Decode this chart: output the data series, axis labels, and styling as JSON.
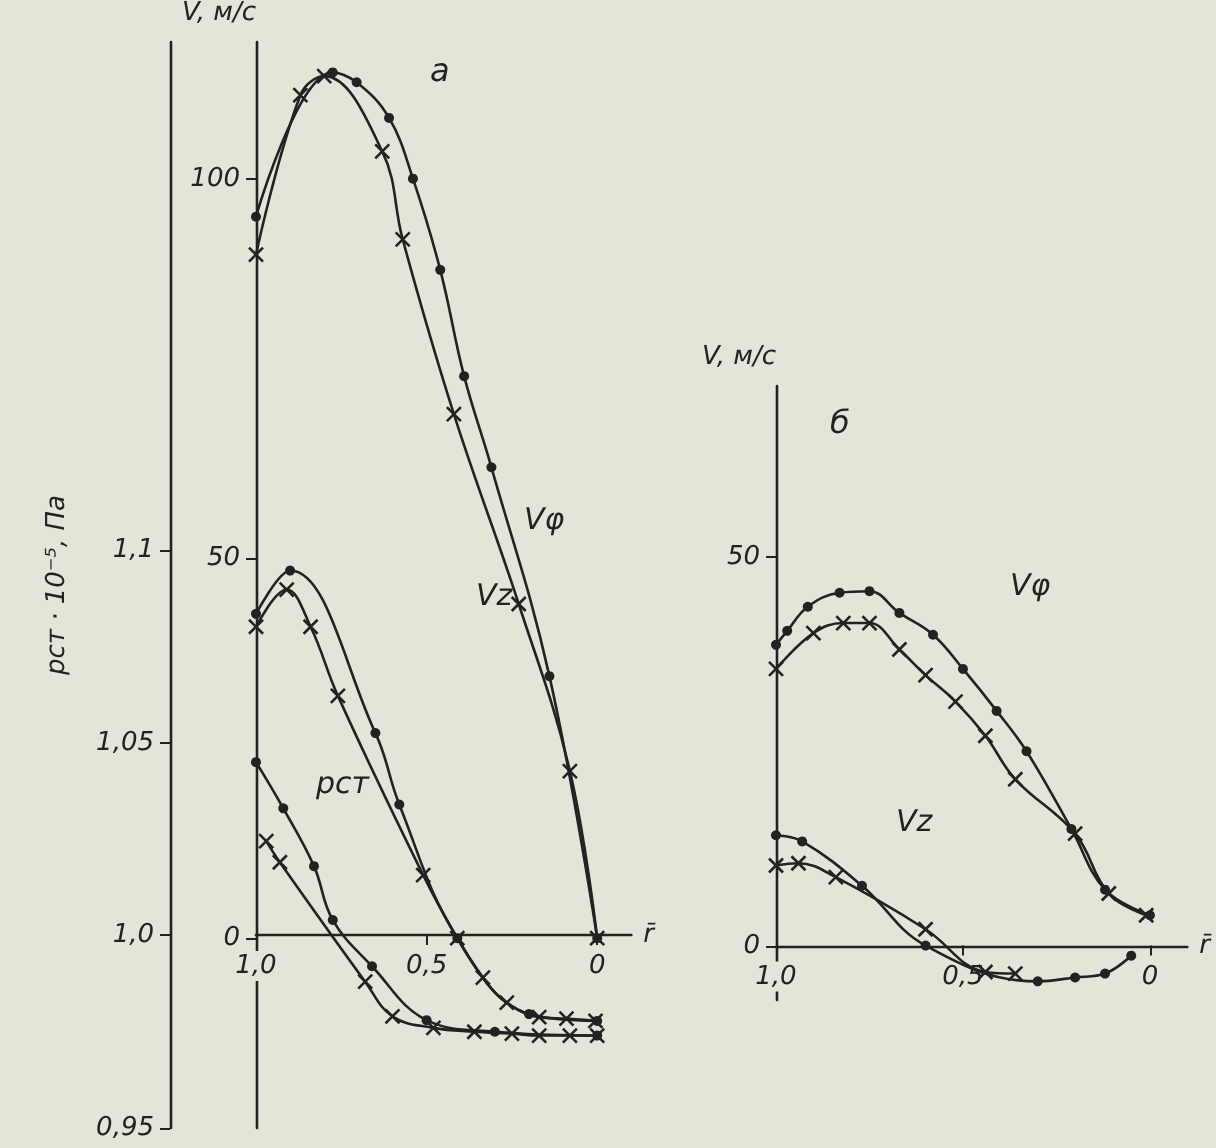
{
  "chart_data": [
    {
      "type": "line",
      "title": "а",
      "xlabel": "r̄",
      "ylabel": "V, м/с",
      "y2label": "pст · 10⁻⁵, Па",
      "xlim": [
        1,
        -0.1
      ],
      "xticks": [
        {
          "value": 1,
          "label": "1,0"
        },
        {
          "value": 0.5,
          "label": "0,5"
        },
        {
          "value": 0,
          "label": "0"
        }
      ],
      "ylim": [
        -25,
        118
      ],
      "yticks": [
        0,
        50,
        100
      ],
      "y2lim": [
        0.95,
        1.232
      ],
      "y2ticks": [
        {
          "value": 0.95,
          "label": "0,95"
        },
        {
          "value": 1,
          "label": "1,0"
        },
        {
          "value": 1.05,
          "label": "1,05"
        },
        {
          "value": 1.1,
          "label": "1,1"
        }
      ],
      "grid": false,
      "series": [
        {
          "color": "#222222",
          "marker": "circle",
          "x": [
            1,
            0.775,
            0.705,
            0.61,
            0.54,
            0.46,
            0.39,
            0.31,
            0.14,
            0
          ],
          "values": [
            95,
            114,
            112.7,
            108,
            100,
            88,
            74,
            62,
            34.5,
            0
          ]
        },
        {
          "color": "#222222",
          "marker": "cross",
          "x": [
            1,
            0.87,
            0.8,
            0.63,
            0.57,
            0.42,
            0.23,
            0.08,
            0
          ],
          "values": [
            90,
            111,
            113.5,
            103.6,
            92,
            69,
            44,
            22,
            0
          ]
        },
        {
          "color": "#222222",
          "marker": "circle",
          "x": [
            1,
            0.9,
            0.65,
            0.58,
            0.41,
            0.2,
            0
          ],
          "values": [
            42.7,
            48.4,
            27,
            17.6,
            0,
            -10,
            -10.9
          ]
        },
        {
          "color": "#222222",
          "marker": "cross",
          "x": [
            1,
            0.91,
            0.84,
            0.76,
            0.51,
            0.41,
            0.335,
            0.265,
            0.17,
            0.09,
            0.005
          ],
          "values": [
            41,
            45.9,
            41,
            31.9,
            8.3,
            0,
            -5.2,
            -8.5,
            -10.4,
            -10.6,
            -10.9
          ]
        },
        {
          "color": "#222222",
          "marker": "circle",
          "axis": "y2",
          "x": [
            1,
            0.92,
            0.83,
            0.775,
            0.66,
            0.5,
            0.3,
            0
          ],
          "values": [
            1.045,
            1.033,
            1.018,
            1.004,
            0.992,
            0.978,
            0.975,
            0.974
          ]
        },
        {
          "color": "#222222",
          "marker": "cross",
          "axis": "y2",
          "x": [
            0.97,
            0.93,
            0.68,
            0.6,
            0.48,
            0.36,
            0.25,
            0.17,
            0.08,
            0
          ],
          "values": [
            1.0245,
            1.019,
            0.988,
            0.979,
            0.976,
            0.975,
            0.9745,
            0.974,
            0.974,
            0.974
          ]
        }
      ],
      "annotations": [
        "Vφ",
        "Vz",
        "pст"
      ]
    },
    {
      "type": "line",
      "title": "б",
      "xlabel": "r̄",
      "ylabel": "V, м/с",
      "xlim": [
        1,
        -0.1
      ],
      "xticks": [
        {
          "value": 1,
          "label": "1,0"
        },
        {
          "value": 0.5,
          "label": "0,5"
        },
        {
          "value": 0,
          "label": "0"
        }
      ],
      "ylim": [
        -7,
        72
      ],
      "yticks": [
        0,
        50
      ],
      "grid": false,
      "series": [
        {
          "color": "#222222",
          "marker": "circle",
          "x": [
            1,
            0.97,
            0.915,
            0.83,
            0.75,
            0.67,
            0.58,
            0.5,
            0.41,
            0.33,
            0.21,
            0.12,
            0
          ],
          "values": [
            38.7,
            40.5,
            43.6,
            45.4,
            45.6,
            42.8,
            40,
            35.6,
            30.2,
            25,
            15,
            7.2,
            3.9
          ]
        },
        {
          "color": "#222222",
          "marker": "cross",
          "x": [
            1,
            0.9,
            0.82,
            0.75,
            0.67,
            0.6,
            0.52,
            0.44,
            0.36,
            0.2,
            0.11,
            0.01
          ],
          "values": [
            35.6,
            40.2,
            41.5,
            41.5,
            38.1,
            34.8,
            31.4,
            27,
            21.4,
            14.4,
            6.7,
            3.9
          ]
        },
        {
          "color": "#222222",
          "marker": "circle",
          "x": [
            1,
            0.93,
            0.77,
            0.6,
            0.3,
            0.2,
            0.12,
            0.05
          ],
          "values": [
            14.2,
            13.4,
            7.7,
            0,
            -4.6,
            -4.1,
            -3.6,
            -1.3
          ]
        },
        {
          "color": "#222222",
          "marker": "cross",
          "x": [
            1,
            0.94,
            0.84,
            0.6,
            0.44,
            0.36
          ],
          "values": [
            10.3,
            10.6,
            8.8,
            2.1,
            -3.4,
            -3.6
          ]
        }
      ],
      "annotations": [
        "Vφ",
        "Vz"
      ]
    }
  ]
}
